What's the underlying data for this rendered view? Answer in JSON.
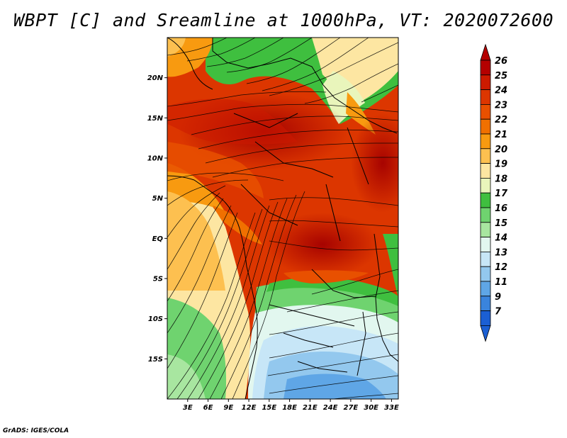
{
  "title": "WBPT [C] and Sreamline at 1000hPa, VT: 2020072600",
  "footer": "GrADS: IGES/COLA",
  "map": {
    "lat_ticks": [
      "20N",
      "15N",
      "10N",
      "5N",
      "EQ",
      "5S",
      "10S",
      "15S"
    ],
    "lon_ticks": [
      "3E",
      "6E",
      "9E",
      "12E",
      "15E",
      "18E",
      "21E",
      "24E",
      "27E",
      "30E",
      "33E"
    ],
    "lat_values": [
      20,
      15,
      10,
      5,
      0,
      -5,
      -10,
      -15
    ],
    "lon_values": [
      3,
      6,
      9,
      12,
      15,
      18,
      21,
      24,
      27,
      30,
      33
    ],
    "lat_range": [
      -20,
      25
    ],
    "lon_range": [
      0,
      34
    ]
  },
  "colorbar": {
    "labels": [
      "26",
      "25",
      "24",
      "23",
      "22",
      "21",
      "20",
      "19",
      "18",
      "17",
      "16",
      "15",
      "14",
      "13",
      "12",
      "11",
      "9",
      "7"
    ],
    "colors": [
      "#b40000",
      "#cc1a00",
      "#dc3600",
      "#e85000",
      "#f07000",
      "#f89a10",
      "#fdc050",
      "#fde6a2",
      "#e9f5bb",
      "#3fbf3f",
      "#6fd36f",
      "#a8e6a0",
      "#e2f7ef",
      "#c7e6f7",
      "#93c8ee",
      "#5fa6e6",
      "#3a84dd",
      "#1b5fd4"
    ]
  }
}
